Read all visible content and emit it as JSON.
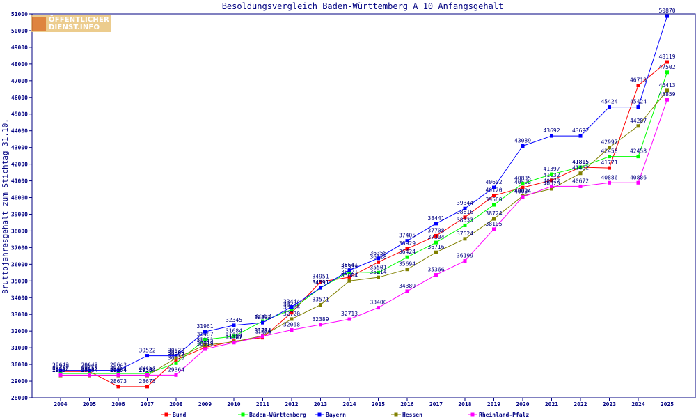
{
  "chart_data": {
    "type": "line",
    "title": "Besoldungsvergleich Baden-Württemberg A 10 Anfangsgehalt",
    "ylabel": "Bruttojahresgehalt zum Stichtag 31.10.",
    "xlabel": "",
    "ylim": [
      28000,
      51000
    ],
    "ytick_step": 1000,
    "grid": false,
    "legend_position": "bottom",
    "categories": [
      "2004",
      "2005",
      "2006",
      "2007",
      "2008",
      "2009",
      "2010",
      "2011",
      "2012",
      "2013",
      "2014",
      "2015",
      "2016",
      "2017",
      "2018",
      "2019",
      "2020",
      "2021",
      "2022",
      "2023",
      "2024",
      "2025"
    ],
    "series": [
      {
        "name": "Bund",
        "color": "#ff0000",
        "values": [
          29578,
          29578,
          28673,
          28673,
          30277,
          31017,
          31394,
          31604,
          33104,
          34951,
          35221,
          36128,
          36929,
          37708,
          38816,
          40120,
          40598,
          41032,
          41815,
          41771,
          46719,
          48119
        ]
      },
      {
        "name": "Baden-Württemberg",
        "color": "#00ff00",
        "values": [
          29454,
          29454,
          29454,
          29454,
          30075,
          31487,
          31684,
          32592,
          33286,
          34591,
          35539,
          35501,
          36424,
          37304,
          38333,
          39560,
          40835,
          41397,
          41815,
          42458,
          42458,
          47502
        ]
      },
      {
        "name": "Bayern",
        "color": "#0000ff",
        "values": [
          29643,
          29643,
          29643,
          30522,
          30522,
          31961,
          32345,
          32502,
          33444,
          34591,
          35641,
          36358,
          37405,
          38441,
          39344,
          40602,
          43089,
          43692,
          43692,
          45424,
          45424,
          50870
        ]
      },
      {
        "name": "Hessen",
        "color": "#808000",
        "values": [
          29334,
          29334,
          29334,
          29334,
          30380,
          31151,
          31357,
          31714,
          32720,
          33571,
          35004,
          35214,
          35694,
          36716,
          37524,
          38724,
          40094,
          40523,
          41452,
          42997,
          44287,
          46413
        ]
      },
      {
        "name": "Rheinland-Pfalz",
        "color": "#ff00ff",
        "values": [
          29364,
          29364,
          29364,
          29364,
          29364,
          30919,
          31307,
          31684,
          32068,
          32389,
          32713,
          33400,
          34389,
          35366,
          36199,
          38105,
          40034,
          40672,
          40672,
          40886,
          40886,
          45859
        ]
      }
    ]
  },
  "logo": {
    "line1": "ÖFFENTLICHER",
    "line2": "DIENST.INFO"
  },
  "colors": {
    "axis": "#000080",
    "text": "#000080",
    "background": "#ffffff"
  }
}
